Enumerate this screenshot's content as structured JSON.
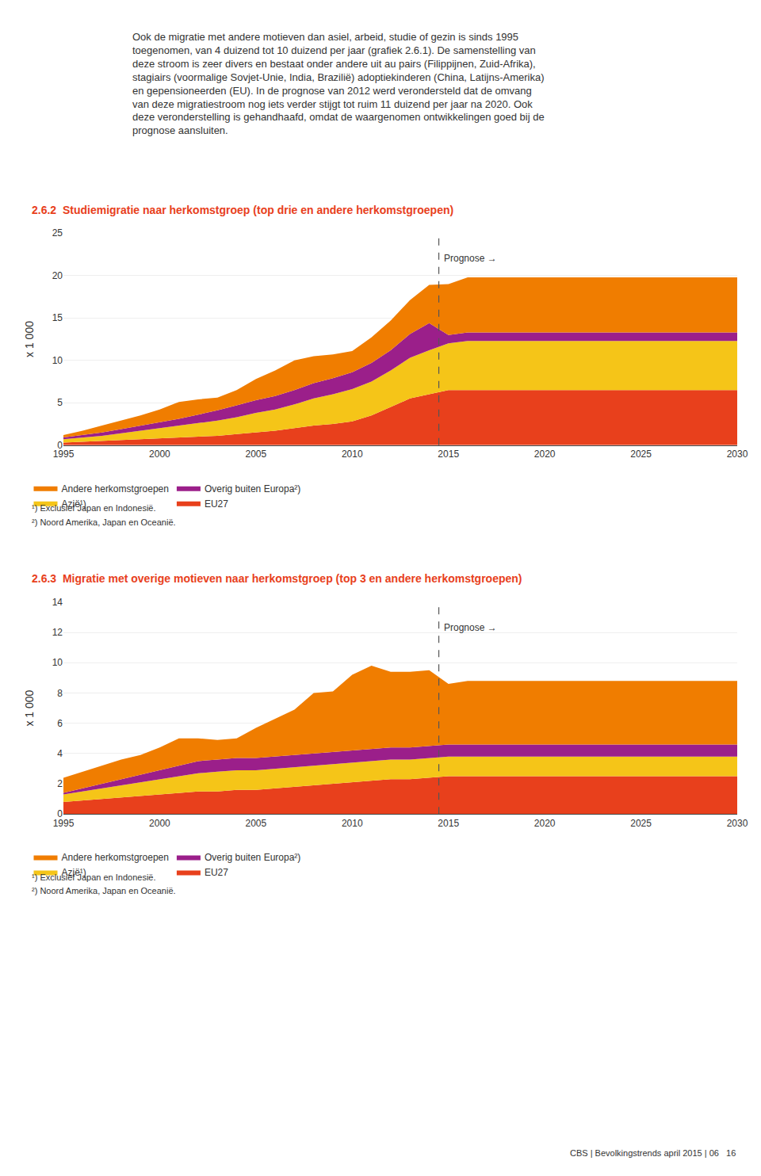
{
  "page_text": "Ook de migratie met andere motieven dan asiel, arbeid, studie of gezin is sinds 1995\ntoegenomen, van 4 duizend tot 10 duizend per jaar (grafiek 2.6.1). De samenstelling van\ndeze stroom is zeer divers en bestaat onder andere uit au pairs (Filippijnen, Zuid-Afrika),\nstagiairs (voormalige Sovjet-Unie, India, Brazilië) adoptiekinderen (China, Latijns-Amerika)\nen gepensioneerden (EU). In de prognose van 2012 werd verondersteld dat de omvang\nvan deze migratiestroom nog iets verder stijgt tot ruim 11 duizend per jaar na 2020. Ook\ndeze veronderstelling is gehandhaafd, omdat de waargenomen ontwikkelingen goed bij de\nprognose aansluiten.",
  "footer": "CBS | Bevolkingstrends april 2015 | 06   16",
  "chart_data": [
    {
      "type": "area",
      "stacked": true,
      "title": "2.6.2  Studiemigratie naar herkomstgroep (top drie en andere herkomstgroepen)",
      "ylabel": "x 1 000",
      "x": [
        1995,
        1996,
        1997,
        1998,
        1999,
        2000,
        2001,
        2002,
        2003,
        2004,
        2005,
        2006,
        2007,
        2008,
        2009,
        2010,
        2011,
        2012,
        2013,
        2014,
        2015,
        2016,
        2017,
        2018,
        2019,
        2020,
        2021,
        2022,
        2023,
        2024,
        2025,
        2026,
        2027,
        2028,
        2029,
        2030
      ],
      "xlim": [
        1995,
        2030
      ],
      "xticks": [
        1995,
        2000,
        2005,
        2010,
        2015,
        2020,
        2025,
        2030
      ],
      "ylim": [
        0,
        25
      ],
      "yticks": [
        0,
        5,
        10,
        15,
        20,
        25
      ],
      "grid": true,
      "legend": "bottom",
      "series": [
        {
          "name": "EU27",
          "color": "#E8401C",
          "values": [
            0.3,
            0.4,
            0.5,
            0.6,
            0.7,
            0.8,
            0.9,
            1.0,
            1.1,
            1.3,
            1.5,
            1.7,
            2.0,
            2.3,
            2.5,
            2.8,
            3.5,
            4.5,
            5.5,
            6.0,
            6.5,
            6.5,
            6.5,
            6.5,
            6.5,
            6.5,
            6.5,
            6.5,
            6.5,
            6.5,
            6.5,
            6.5,
            6.5,
            6.5,
            6.5,
            6.5
          ]
        },
        {
          "name": "Azië¹)",
          "color": "#F5C518",
          "values": [
            0.4,
            0.5,
            0.6,
            0.8,
            1.0,
            1.2,
            1.4,
            1.6,
            1.8,
            2.0,
            2.3,
            2.5,
            2.8,
            3.2,
            3.5,
            3.8,
            4.0,
            4.3,
            4.8,
            5.2,
            5.5,
            5.8,
            5.8,
            5.8,
            5.8,
            5.8,
            5.8,
            5.8,
            5.8,
            5.8,
            5.8,
            5.8,
            5.8,
            5.8,
            5.8,
            5.8
          ]
        },
        {
          "name": "Overig buiten Europa²)",
          "color": "#9B1F8A",
          "values": [
            0.2,
            0.3,
            0.4,
            0.5,
            0.6,
            0.7,
            0.8,
            1.0,
            1.2,
            1.4,
            1.5,
            1.6,
            1.7,
            1.8,
            1.9,
            2.0,
            2.2,
            2.4,
            2.8,
            3.2,
            1.0,
            1.0,
            1.0,
            1.0,
            1.0,
            1.0,
            1.0,
            1.0,
            1.0,
            1.0,
            1.0,
            1.0,
            1.0,
            1.0,
            1.0,
            1.0
          ]
        },
        {
          "name": "Andere herkomstgroepen",
          "color": "#F07D00",
          "values": [
            0.3,
            0.5,
            0.8,
            1.0,
            1.2,
            1.5,
            2.0,
            1.8,
            1.5,
            1.8,
            2.5,
            3.0,
            3.5,
            3.2,
            2.8,
            2.5,
            3.0,
            3.5,
            4.0,
            4.5,
            6.0,
            6.5,
            6.5,
            6.5,
            6.5,
            6.5,
            6.5,
            6.5,
            6.5,
            6.5,
            6.5,
            6.5,
            6.5,
            6.5,
            6.5,
            6.5
          ]
        }
      ],
      "annotations": [
        {
          "text": "Prognose →",
          "x": 2014.5
        },
        {
          "text": "¹) Exclusief Japan en Indonesië."
        },
        {
          "text": "²) Noord Amerika, Japan en Oceanië."
        }
      ]
    },
    {
      "type": "area",
      "stacked": true,
      "title": "2.6.3  Migratie met overige motieven naar herkomstgroep (top 3 en andere herkomstgroepen)",
      "ylabel": "x 1 000",
      "x": [
        1995,
        1996,
        1997,
        1998,
        1999,
        2000,
        2001,
        2002,
        2003,
        2004,
        2005,
        2006,
        2007,
        2008,
        2009,
        2010,
        2011,
        2012,
        2013,
        2014,
        2015,
        2016,
        2017,
        2018,
        2019,
        2020,
        2021,
        2022,
        2023,
        2024,
        2025,
        2026,
        2027,
        2028,
        2029,
        2030
      ],
      "xlim": [
        1995,
        2030
      ],
      "xticks": [
        1995,
        2000,
        2005,
        2010,
        2015,
        2020,
        2025,
        2030
      ],
      "ylim": [
        0,
        14
      ],
      "yticks": [
        0,
        2,
        4,
        6,
        8,
        10,
        12,
        14
      ],
      "grid": true,
      "legend": "bottom",
      "series": [
        {
          "name": "EU27",
          "color": "#E8401C",
          "values": [
            0.8,
            0.9,
            1.0,
            1.1,
            1.2,
            1.3,
            1.4,
            1.5,
            1.5,
            1.6,
            1.6,
            1.7,
            1.8,
            1.9,
            2.0,
            2.1,
            2.2,
            2.3,
            2.3,
            2.4,
            2.5,
            2.5,
            2.5,
            2.5,
            2.5,
            2.5,
            2.5,
            2.5,
            2.5,
            2.5,
            2.5,
            2.5,
            2.5,
            2.5,
            2.5,
            2.5
          ]
        },
        {
          "name": "Azië¹)",
          "color": "#F5C518",
          "values": [
            0.5,
            0.6,
            0.7,
            0.8,
            0.9,
            1.0,
            1.1,
            1.2,
            1.3,
            1.3,
            1.3,
            1.3,
            1.3,
            1.3,
            1.3,
            1.3,
            1.3,
            1.3,
            1.3,
            1.3,
            1.3,
            1.3,
            1.3,
            1.3,
            1.3,
            1.3,
            1.3,
            1.3,
            1.3,
            1.3,
            1.3,
            1.3,
            1.3,
            1.3,
            1.3,
            1.3
          ]
        },
        {
          "name": "Overig buiten Europa²)",
          "color": "#9B1F8A",
          "values": [
            0.1,
            0.2,
            0.3,
            0.4,
            0.5,
            0.6,
            0.7,
            0.8,
            0.8,
            0.8,
            0.8,
            0.8,
            0.8,
            0.8,
            0.8,
            0.8,
            0.8,
            0.8,
            0.8,
            0.8,
            0.8,
            0.8,
            0.8,
            0.8,
            0.8,
            0.8,
            0.8,
            0.8,
            0.8,
            0.8,
            0.8,
            0.8,
            0.8,
            0.8,
            0.8,
            0.8
          ]
        },
        {
          "name": "Andere herkomstgroepen",
          "color": "#F07D00",
          "values": [
            1.0,
            1.1,
            1.2,
            1.3,
            1.3,
            1.5,
            1.8,
            1.5,
            1.3,
            1.3,
            2.0,
            2.5,
            3.0,
            4.0,
            4.0,
            5.0,
            5.5,
            5.0,
            5.0,
            5.0,
            4.0,
            4.2,
            4.2,
            4.2,
            4.2,
            4.2,
            4.2,
            4.2,
            4.2,
            4.2,
            4.2,
            4.2,
            4.2,
            4.2,
            4.2,
            4.2
          ]
        }
      ],
      "annotations": [
        {
          "text": "Prognose →",
          "x": 2014.5
        },
        {
          "text": "¹) Exclusief Japan en Indonesië."
        },
        {
          "text": "²) Noord Amerika, Japan en Oceanië."
        }
      ]
    }
  ]
}
